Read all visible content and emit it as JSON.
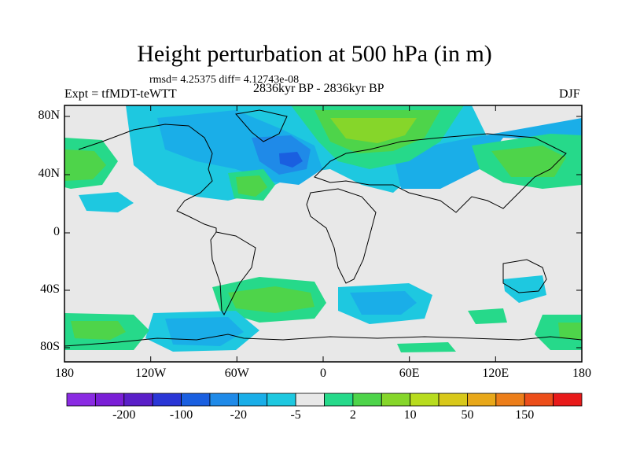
{
  "title": "Height perturbation at 500 hPa (in m)",
  "stats": "rmsd= 4.25375 diff= 4.12743e-08",
  "left_label": "Expt = tfMDT-teWTT",
  "center_label": "2836kyr BP - 2836kyr BP",
  "right_label": "DJF",
  "lat_ticks": [
    "80N",
    "40N",
    "0",
    "40S",
    "80S"
  ],
  "lon_ticks": [
    "180",
    "120W",
    "60W",
    "0",
    "60E",
    "120E",
    "180"
  ],
  "colorbar": {
    "colors": [
      "#8a2be2",
      "#7a1fd6",
      "#5a1fc8",
      "#2a36d6",
      "#1a5fe0",
      "#1f8ae8",
      "#1aaee8",
      "#1ec8e0",
      "#e8e8e8",
      "#26d98a",
      "#4ed44a",
      "#86d62a",
      "#b8dc1e",
      "#d8c81a",
      "#e8a81a",
      "#ec7e1a",
      "#ec4e1a",
      "#e81a1a"
    ],
    "labels": [
      "-200",
      "-100",
      "-20",
      "-5",
      "2",
      "10",
      "50",
      "150"
    ]
  },
  "field_colors": {
    "neutral": "#e8e8e8",
    "neg_light": "#1ec8e0",
    "neg_mid": "#1aaee8",
    "neg_strong": "#1f8ae8",
    "neg_stronger": "#1a5fe0",
    "pos_light": "#26d98a",
    "pos_mid": "#4ed44a",
    "pos_strong": "#86d62a",
    "pos_stronger": "#b8dc1e"
  }
}
